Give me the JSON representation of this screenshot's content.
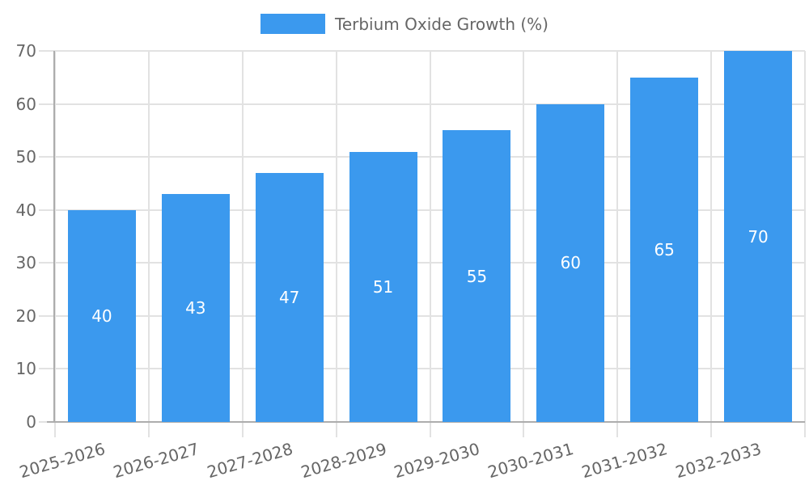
{
  "chart_data": {
    "type": "bar",
    "title": "",
    "legend": "Terbium Oxide Growth (%)",
    "legend_position": "top",
    "categories": [
      "2025-2026",
      "2026-2027",
      "2027-2028",
      "2028-2029",
      "2029-2030",
      "2030-2031",
      "2031-2032",
      "2032-2033"
    ],
    "values": [
      40,
      43,
      47,
      51,
      55,
      60,
      65,
      70
    ],
    "value_labels": [
      "40",
      "43",
      "47",
      "51",
      "55",
      "60",
      "65",
      "70"
    ],
    "xlabel": "",
    "ylabel": "",
    "ylim": [
      0,
      70
    ],
    "yticks": [
      0,
      10,
      20,
      30,
      40,
      50,
      60,
      70
    ],
    "grid": true,
    "bar_color": "#3B99EE",
    "value_label_color": "#FFFFFF",
    "grid_color": "#E2E2E2",
    "axis_color": "#ADADAD",
    "tick_text_color": "#666666",
    "background_color": "#FFFFFF"
  }
}
